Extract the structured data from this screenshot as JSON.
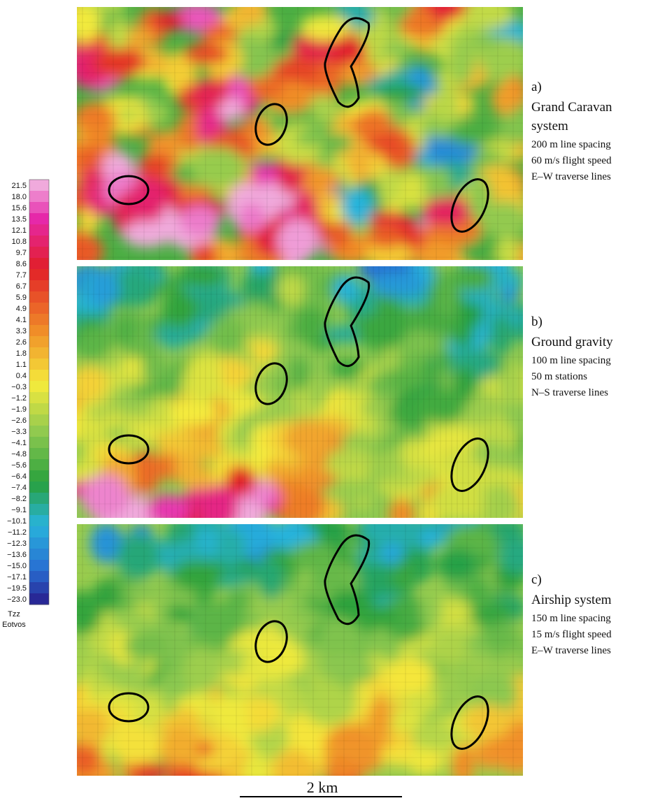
{
  "colorbar": {
    "labels": [
      "21.5",
      "18.0",
      "15.6",
      "13.5",
      "12.1",
      "10.8",
      "9.7",
      "8.6",
      "7.7",
      "6.7",
      "5.9",
      "4.9",
      "4.1",
      "3.3",
      "2.6",
      "1.8",
      "1.1",
      "0.4",
      "−0.3",
      "−1.2",
      "−1.9",
      "−2.6",
      "−3.3",
      "−4.1",
      "−4.8",
      "−5.6",
      "−6.4",
      "−7.4",
      "−8.2",
      "−9.1",
      "−10.1",
      "−11.2",
      "−12.3",
      "−13.6",
      "−15.0",
      "−17.1",
      "−19.5",
      "−23.0"
    ],
    "title": "Tzz",
    "unit": "Eotvos"
  },
  "panels": [
    {
      "label": "a)",
      "name": [
        "Grand Caravan",
        "system"
      ],
      "details": [
        "200 m line spacing",
        "60 m/s flight speed",
        "E–W traverse lines"
      ]
    },
    {
      "label": "b)",
      "name": [
        "Ground gravity"
      ],
      "details": [
        "100 m line spacing",
        "50 m stations",
        "N–S traverse lines"
      ]
    },
    {
      "label": "c)",
      "name": [
        "Airship system"
      ],
      "details": [
        "150 m line spacing",
        "15 m/s flight speed",
        "E–W traverse lines"
      ]
    }
  ],
  "scale_bar": "2 km"
}
